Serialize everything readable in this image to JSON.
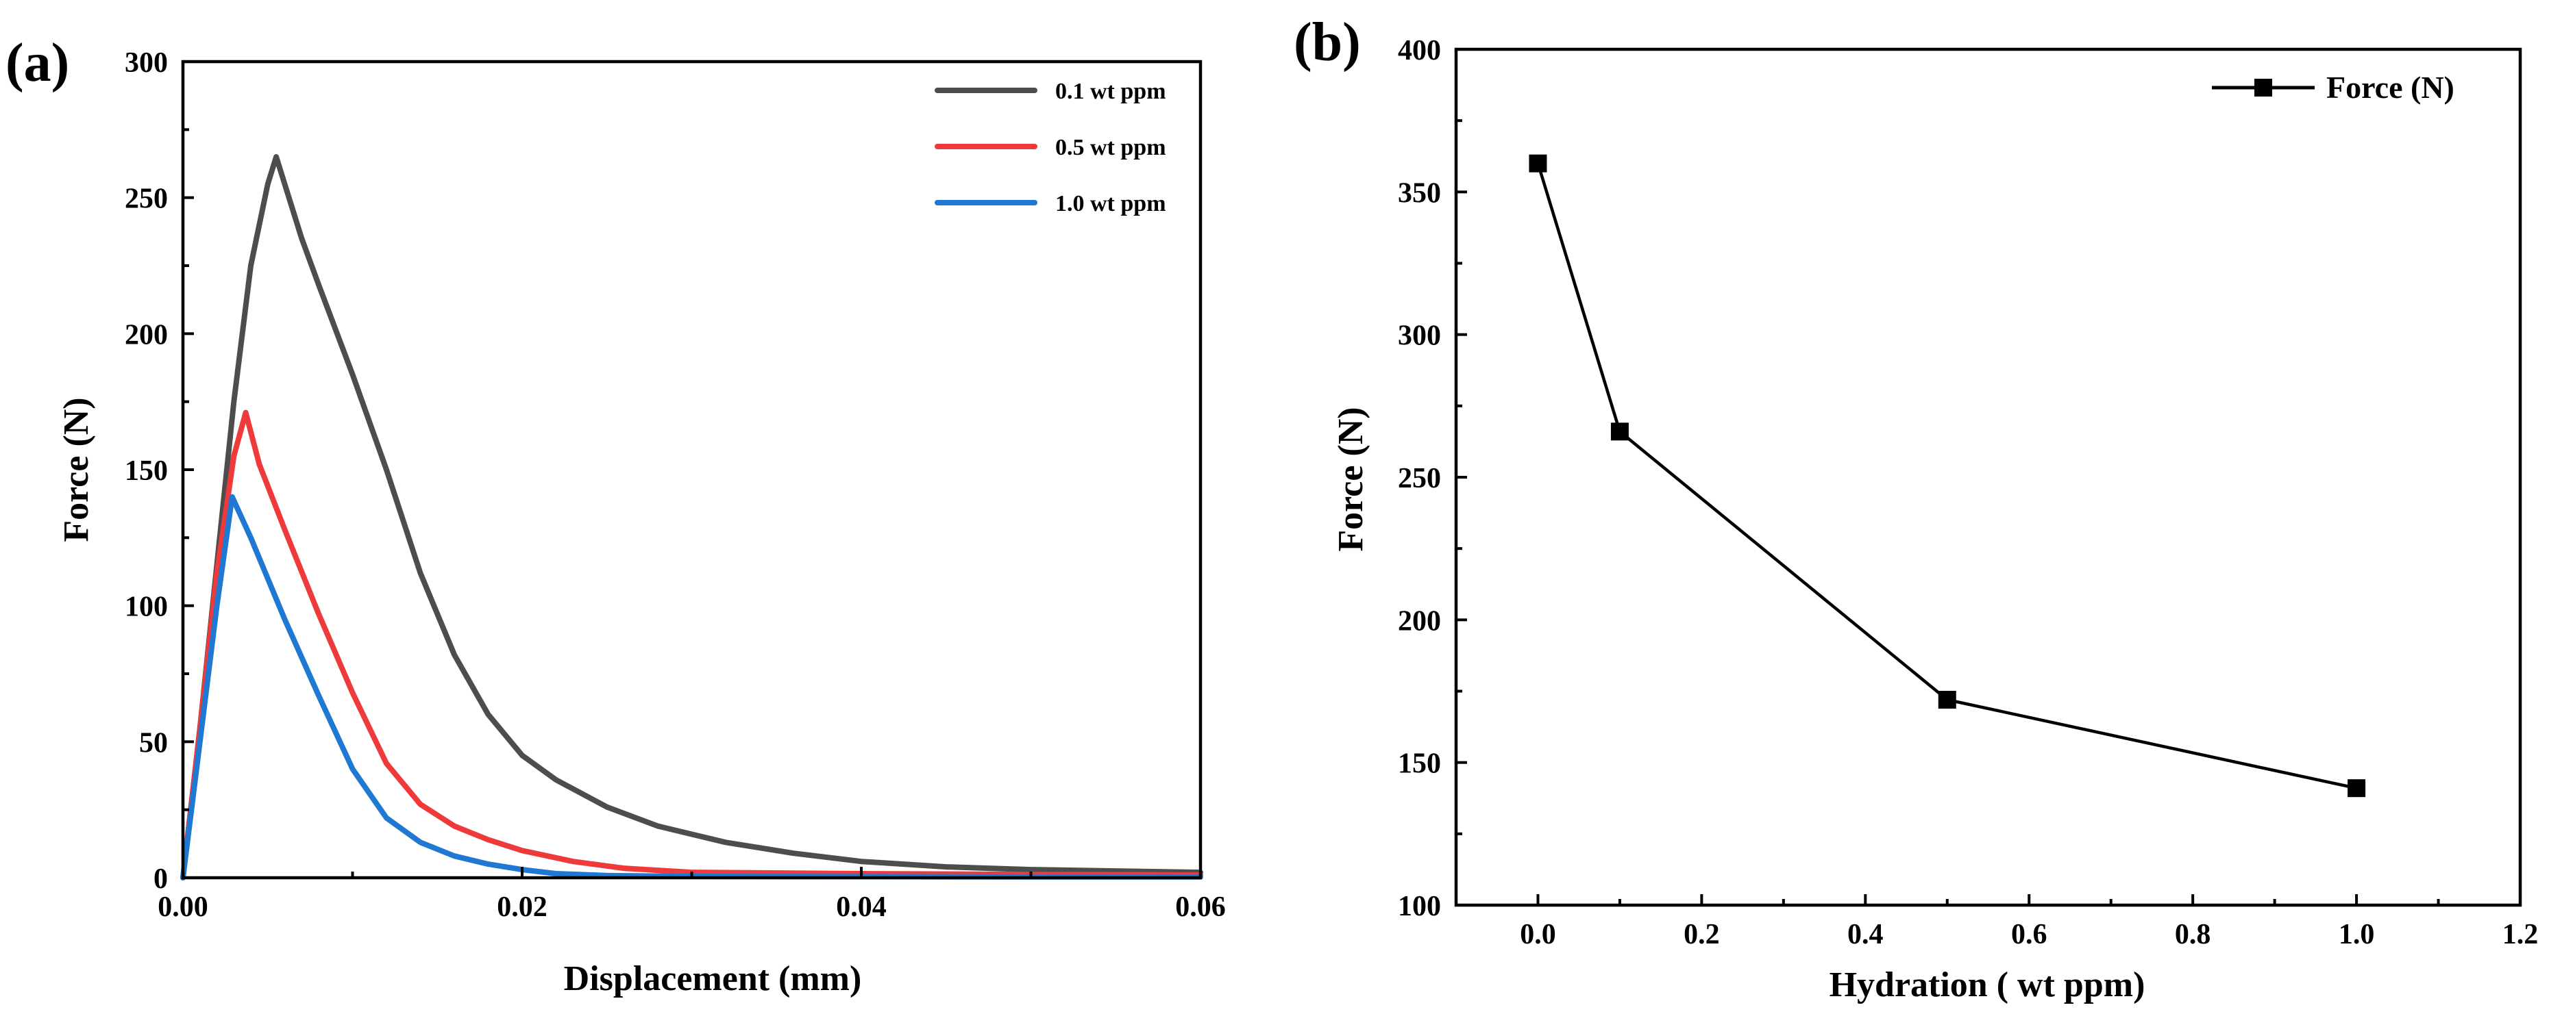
{
  "chart_data": [
    {
      "panel_label": "(a)",
      "type": "line",
      "title": "",
      "xlabel": "Displacement (mm)",
      "ylabel": "Force (N)",
      "xlim": [
        0,
        0.06
      ],
      "ylim": [
        0,
        300
      ],
      "xticks": [
        0,
        0.02,
        0.04,
        0.06
      ],
      "xtick_labels": [
        "0.00",
        "0.02",
        "0.04",
        "0.06"
      ],
      "yticks": [
        0,
        50,
        100,
        150,
        200,
        250,
        300
      ],
      "ytick_labels": [
        "0",
        "50",
        "100",
        "150",
        "200",
        "250",
        "300"
      ],
      "legend_position": "top-right",
      "series": [
        {
          "name": "0.1 wt ppm",
          "color": "#4d4d4d",
          "points": [
            [
              0,
              0
            ],
            [
              0.001,
              55
            ],
            [
              0.002,
              115
            ],
            [
              0.003,
              175
            ],
            [
              0.004,
              225
            ],
            [
              0.005,
              255
            ],
            [
              0.0055,
              265
            ],
            [
              0.006,
              255
            ],
            [
              0.007,
              235
            ],
            [
              0.008,
              218
            ],
            [
              0.01,
              185
            ],
            [
              0.012,
              150
            ],
            [
              0.014,
              112
            ],
            [
              0.016,
              82
            ],
            [
              0.018,
              60
            ],
            [
              0.02,
              45
            ],
            [
              0.022,
              36
            ],
            [
              0.025,
              26
            ],
            [
              0.028,
              19
            ],
            [
              0.032,
              13
            ],
            [
              0.036,
              9
            ],
            [
              0.04,
              6
            ],
            [
              0.045,
              4
            ],
            [
              0.05,
              3
            ],
            [
              0.055,
              2.5
            ],
            [
              0.06,
              2
            ]
          ]
        },
        {
          "name": "0.5 wt ppm",
          "color": "#ee3a3a",
          "points": [
            [
              0,
              0
            ],
            [
              0.001,
              55
            ],
            [
              0.002,
              112
            ],
            [
              0.003,
              155
            ],
            [
              0.0037,
              171
            ],
            [
              0.0045,
              152
            ],
            [
              0.006,
              128
            ],
            [
              0.008,
              97
            ],
            [
              0.01,
              68
            ],
            [
              0.012,
              42
            ],
            [
              0.014,
              27
            ],
            [
              0.016,
              19
            ],
            [
              0.018,
              14
            ],
            [
              0.02,
              10
            ],
            [
              0.023,
              6
            ],
            [
              0.026,
              3.5
            ],
            [
              0.03,
              2
            ],
            [
              0.04,
              1.5
            ],
            [
              0.05,
              1.2
            ],
            [
              0.06,
              1
            ]
          ]
        },
        {
          "name": "1.0 wt ppm",
          "color": "#1f78d1",
          "points": [
            [
              0,
              0
            ],
            [
              0.001,
              50
            ],
            [
              0.002,
              100
            ],
            [
              0.0029,
              140
            ],
            [
              0.004,
              125
            ],
            [
              0.006,
              95
            ],
            [
              0.008,
              67
            ],
            [
              0.01,
              40
            ],
            [
              0.012,
              22
            ],
            [
              0.014,
              13
            ],
            [
              0.016,
              8
            ],
            [
              0.018,
              5
            ],
            [
              0.02,
              3
            ],
            [
              0.022,
              1.5
            ],
            [
              0.025,
              0.8
            ],
            [
              0.03,
              0.5
            ],
            [
              0.04,
              0.4
            ],
            [
              0.05,
              0.3
            ],
            [
              0.06,
              0.3
            ]
          ]
        }
      ]
    },
    {
      "panel_label": "(b)",
      "type": "line",
      "title": "",
      "xlabel": "Hydration ( wt ppm)",
      "ylabel": "Force (N)",
      "xlim": [
        -0.1,
        1.2
      ],
      "ylim": [
        100,
        400
      ],
      "xticks": [
        0,
        0.2,
        0.4,
        0.6,
        0.8,
        1.0,
        1.2
      ],
      "xtick_labels": [
        "0.0",
        "0.2",
        "0.4",
        "0.6",
        "0.8",
        "1.0",
        "1.2"
      ],
      "yticks": [
        100,
        150,
        200,
        250,
        300,
        350,
        400
      ],
      "ytick_labels": [
        "100",
        "150",
        "200",
        "250",
        "300",
        "350",
        "400"
      ],
      "legend_position": "top-right",
      "series": [
        {
          "name": "Force (N)",
          "color": "#000000",
          "x": [
            0,
            0.1,
            0.5,
            1.0
          ],
          "y": [
            360,
            266,
            172,
            141
          ]
        }
      ]
    }
  ]
}
